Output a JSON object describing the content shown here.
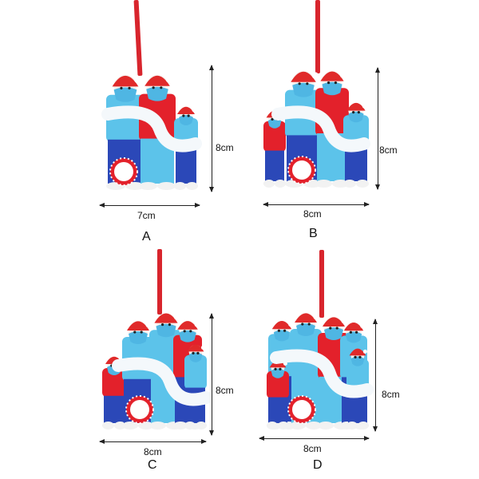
{
  "colors": {
    "ribbon": "#d8252d",
    "light_blue": "#5cc3ea",
    "dark_blue": "#2b48b8",
    "red": "#e3212b",
    "mask": "#4fb6e3",
    "hat": "#e02a2a",
    "banner": "#f4f8fb"
  },
  "panels": [
    {
      "label": "A",
      "width": "7cm",
      "height": "8cm"
    },
    {
      "label": "B",
      "width": "8cm",
      "height": "8cm"
    },
    {
      "label": "C",
      "width": "8cm",
      "height": "8cm"
    },
    {
      "label": "D",
      "width": "8cm",
      "height": "8cm"
    }
  ]
}
